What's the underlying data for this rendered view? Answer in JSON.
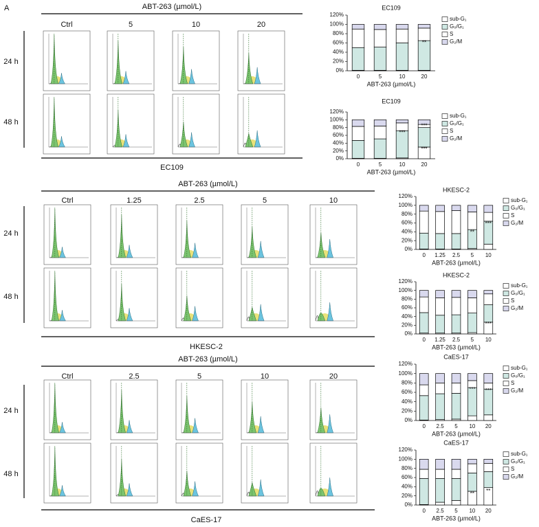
{
  "figure_label": "A",
  "panels": [
    {
      "name": "EC109",
      "treatment_label": "ABT-263 (µmol/L)",
      "doses": [
        "Ctrl",
        "5",
        "10",
        "20"
      ],
      "times": [
        "24 h",
        "48 h"
      ]
    },
    {
      "name": "HKESC-2",
      "treatment_label": "ABT-263 (µmol/L)",
      "doses": [
        "Ctrl",
        "1.25",
        "2.5",
        "5",
        "10"
      ],
      "times": [
        "24 h",
        "48 h"
      ]
    },
    {
      "name": "CaES-17",
      "treatment_label": "ABT-263 (µmol/L)",
      "doses": [
        "Ctrl",
        "2.5",
        "5",
        "10",
        "20"
      ],
      "times": [
        "24 h",
        "48 h"
      ]
    }
  ],
  "chart_data": [
    {
      "type": "bar",
      "stacked": true,
      "title": "EC109",
      "x_label": "ABT-263 (µmol/L)",
      "categories": [
        "0",
        "5",
        "10",
        "20"
      ],
      "series": [
        {
          "name": "sub-G₁",
          "color": "#ffffff",
          "values": [
            1,
            1,
            1,
            1
          ]
        },
        {
          "name": "G₀/G₁",
          "color": "#cfe8e3",
          "values": [
            49,
            50,
            59,
            64
          ]
        },
        {
          "name": "S",
          "color": "#ffffff",
          "values": [
            40,
            38,
            30,
            27
          ]
        },
        {
          "name": "G₂/M",
          "color": "#d9d9ee",
          "values": [
            10,
            11,
            10,
            8
          ]
        }
      ],
      "ylim": [
        0,
        120
      ],
      "yticks": [
        {
          "value": 0,
          "label": "0%"
        },
        {
          "value": 20,
          "label": "20%"
        },
        {
          "value": 40,
          "label": "40%"
        },
        {
          "value": 60,
          "label": "60%"
        },
        {
          "value": 80,
          "label": "80%"
        },
        {
          "value": 100,
          "label": "100%"
        },
        {
          "value": 120,
          "label": "120%"
        }
      ],
      "annotations": [
        {
          "text": "**",
          "x": "20",
          "y": 60
        }
      ]
    },
    {
      "type": "bar",
      "stacked": true,
      "title": "EC109",
      "x_label": "ABT-263 (µmol/L)",
      "categories": [
        "0",
        "5",
        "10",
        "20"
      ],
      "series": [
        {
          "name": "sub-G₁",
          "color": "#ffffff",
          "values": [
            1,
            1,
            2,
            30
          ]
        },
        {
          "name": "G₀/G₁",
          "color": "#cfe8e3",
          "values": [
            46,
            50,
            70,
            50
          ]
        },
        {
          "name": "S",
          "color": "#ffffff",
          "values": [
            36,
            33,
            20,
            8
          ]
        },
        {
          "name": "G₂/M",
          "color": "#d9d9ee",
          "values": [
            17,
            16,
            8,
            12
          ]
        }
      ],
      "ylim": [
        0,
        120
      ],
      "yticks": [
        {
          "value": 0,
          "label": "0%"
        },
        {
          "value": 20,
          "label": "20%"
        },
        {
          "value": 40,
          "label": "40%"
        },
        {
          "value": 60,
          "label": "60%"
        },
        {
          "value": 80,
          "label": "80%"
        },
        {
          "value": 100,
          "label": "100%"
        },
        {
          "value": 120,
          "label": "120%"
        }
      ],
      "annotations": [
        {
          "text": "***",
          "x": "10",
          "y": 66
        },
        {
          "text": "***",
          "x": "20",
          "y": 84
        },
        {
          "text": "***",
          "x": "20",
          "y": 24
        }
      ]
    },
    {
      "type": "bar",
      "stacked": true,
      "title": "HKESC-2",
      "x_label": "ABT-263 (µmol/L)",
      "categories": [
        "0",
        "1.25",
        "2.5",
        "5",
        "10"
      ],
      "series": [
        {
          "name": "sub-G₁",
          "color": "#ffffff",
          "values": [
            1,
            1,
            1,
            2,
            12
          ]
        },
        {
          "name": "G₀/G₁",
          "color": "#cfe8e3",
          "values": [
            36,
            35,
            35,
            43,
            52
          ]
        },
        {
          "name": "S",
          "color": "#ffffff",
          "values": [
            50,
            50,
            52,
            40,
            20
          ]
        },
        {
          "name": "G₂/M",
          "color": "#d9d9ee",
          "values": [
            13,
            14,
            12,
            15,
            16
          ]
        }
      ],
      "ylim": [
        0,
        120
      ],
      "yticks": [
        {
          "value": 0,
          "label": "0%"
        },
        {
          "value": 20,
          "label": "20%"
        },
        {
          "value": 40,
          "label": "40%"
        },
        {
          "value": 60,
          "label": "60%"
        },
        {
          "value": 80,
          "label": "80%"
        },
        {
          "value": 100,
          "label": "100%"
        },
        {
          "value": 120,
          "label": "120%"
        }
      ],
      "annotations": [
        {
          "text": "**",
          "x": "5",
          "y": 38
        },
        {
          "text": "***",
          "x": "10",
          "y": 58
        }
      ]
    },
    {
      "type": "bar",
      "stacked": true,
      "title": "HKESC-2",
      "x_label": "ABT-263 (µmol/L)",
      "categories": [
        "0",
        "1.25",
        "2.5",
        "5",
        "10"
      ],
      "series": [
        {
          "name": "sub-G₁",
          "color": "#ffffff",
          "values": [
            2,
            2,
            2,
            3,
            27
          ]
        },
        {
          "name": "G₀/G₁",
          "color": "#cfe8e3",
          "values": [
            47,
            41,
            42,
            45,
            40
          ]
        },
        {
          "name": "S",
          "color": "#ffffff",
          "values": [
            36,
            40,
            40,
            35,
            25
          ]
        },
        {
          "name": "G₂/M",
          "color": "#d9d9ee",
          "values": [
            15,
            17,
            16,
            17,
            8
          ]
        }
      ],
      "ylim": [
        0,
        120
      ],
      "yticks": [
        {
          "value": 0,
          "label": "0%"
        },
        {
          "value": 20,
          "label": "20%"
        },
        {
          "value": 40,
          "label": "40%"
        },
        {
          "value": 60,
          "label": "60%"
        },
        {
          "value": 80,
          "label": "80%"
        },
        {
          "value": 100,
          "label": "100%"
        },
        {
          "value": 120,
          "label": "120%"
        }
      ],
      "annotations": [
        {
          "text": "***",
          "x": "10",
          "y": 22
        }
      ]
    },
    {
      "type": "bar",
      "stacked": true,
      "title": "CaES-17",
      "x_label": "ABT-263 (µmol/L)",
      "categories": [
        "0",
        "2.5",
        "5",
        "10",
        "20"
      ],
      "series": [
        {
          "name": "sub-G₁",
          "color": "#ffffff",
          "values": [
            1,
            2,
            3,
            10,
            12
          ]
        },
        {
          "name": "G₀/G₁",
          "color": "#cfe8e3",
          "values": [
            52,
            55,
            55,
            60,
            55
          ]
        },
        {
          "name": "S",
          "color": "#ffffff",
          "values": [
            23,
            23,
            22,
            15,
            13
          ]
        },
        {
          "name": "G₂/M",
          "color": "#d9d9ee",
          "values": [
            24,
            20,
            20,
            15,
            20
          ]
        }
      ],
      "ylim": [
        0,
        120
      ],
      "yticks": [
        {
          "value": 0,
          "label": "0%"
        },
        {
          "value": 20,
          "label": "20%"
        },
        {
          "value": 40,
          "label": "40%"
        },
        {
          "value": 60,
          "label": "60%"
        },
        {
          "value": 80,
          "label": "80%"
        },
        {
          "value": 100,
          "label": "100%"
        },
        {
          "value": 120,
          "label": "120%"
        }
      ],
      "annotations": [
        {
          "text": "***",
          "x": "10",
          "y": 66
        },
        {
          "text": "***",
          "x": "20",
          "y": 63
        }
      ]
    },
    {
      "type": "bar",
      "stacked": true,
      "title": "CaES-17",
      "x_label": "ABT-263 (µmol/L)",
      "categories": [
        "0",
        "2.5",
        "5",
        "10",
        "20"
      ],
      "series": [
        {
          "name": "sub-G₁",
          "color": "#ffffff",
          "values": [
            1,
            6,
            10,
            30,
            38
          ]
        },
        {
          "name": "G₀/G₁",
          "color": "#cfe8e3",
          "values": [
            57,
            52,
            48,
            40,
            35
          ]
        },
        {
          "name": "S",
          "color": "#ffffff",
          "values": [
            20,
            20,
            20,
            20,
            18
          ]
        },
        {
          "name": "G₂/M",
          "color": "#d9d9ee",
          "values": [
            22,
            22,
            22,
            10,
            9
          ]
        }
      ],
      "ylim": [
        0,
        120
      ],
      "yticks": [
        {
          "value": 0,
          "label": "0%"
        },
        {
          "value": 20,
          "label": "20%"
        },
        {
          "value": 40,
          "label": "40%"
        },
        {
          "value": 60,
          "label": "60%"
        },
        {
          "value": 80,
          "label": "80%"
        },
        {
          "value": 100,
          "label": "100%"
        },
        {
          "value": 120,
          "label": "120%"
        }
      ],
      "annotations": [
        {
          "text": "**",
          "x": "10",
          "y": 24
        },
        {
          "text": "**",
          "x": "20",
          "y": 30
        }
      ]
    }
  ]
}
